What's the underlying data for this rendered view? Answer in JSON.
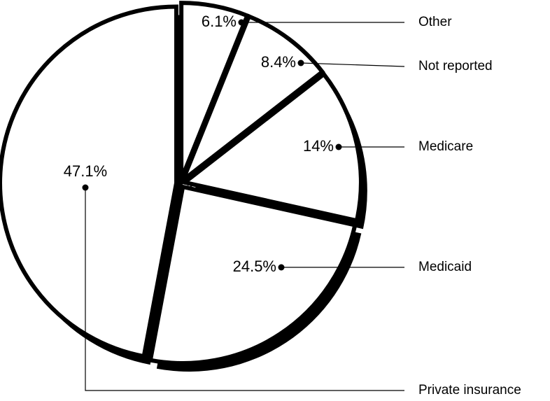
{
  "chart_data": {
    "type": "pie",
    "categories": [
      "Other",
      "Not reported",
      "Medicare",
      "Medicaid",
      "Private insurance"
    ],
    "values": [
      6.1,
      8.4,
      14,
      24.5,
      47.1
    ],
    "value_labels": [
      "6.1%",
      "8.4%",
      "14%",
      "24.5%",
      "47.1%"
    ],
    "color": "#ffffff",
    "edge_color": "#000000",
    "shadow_color": "#000000"
  }
}
